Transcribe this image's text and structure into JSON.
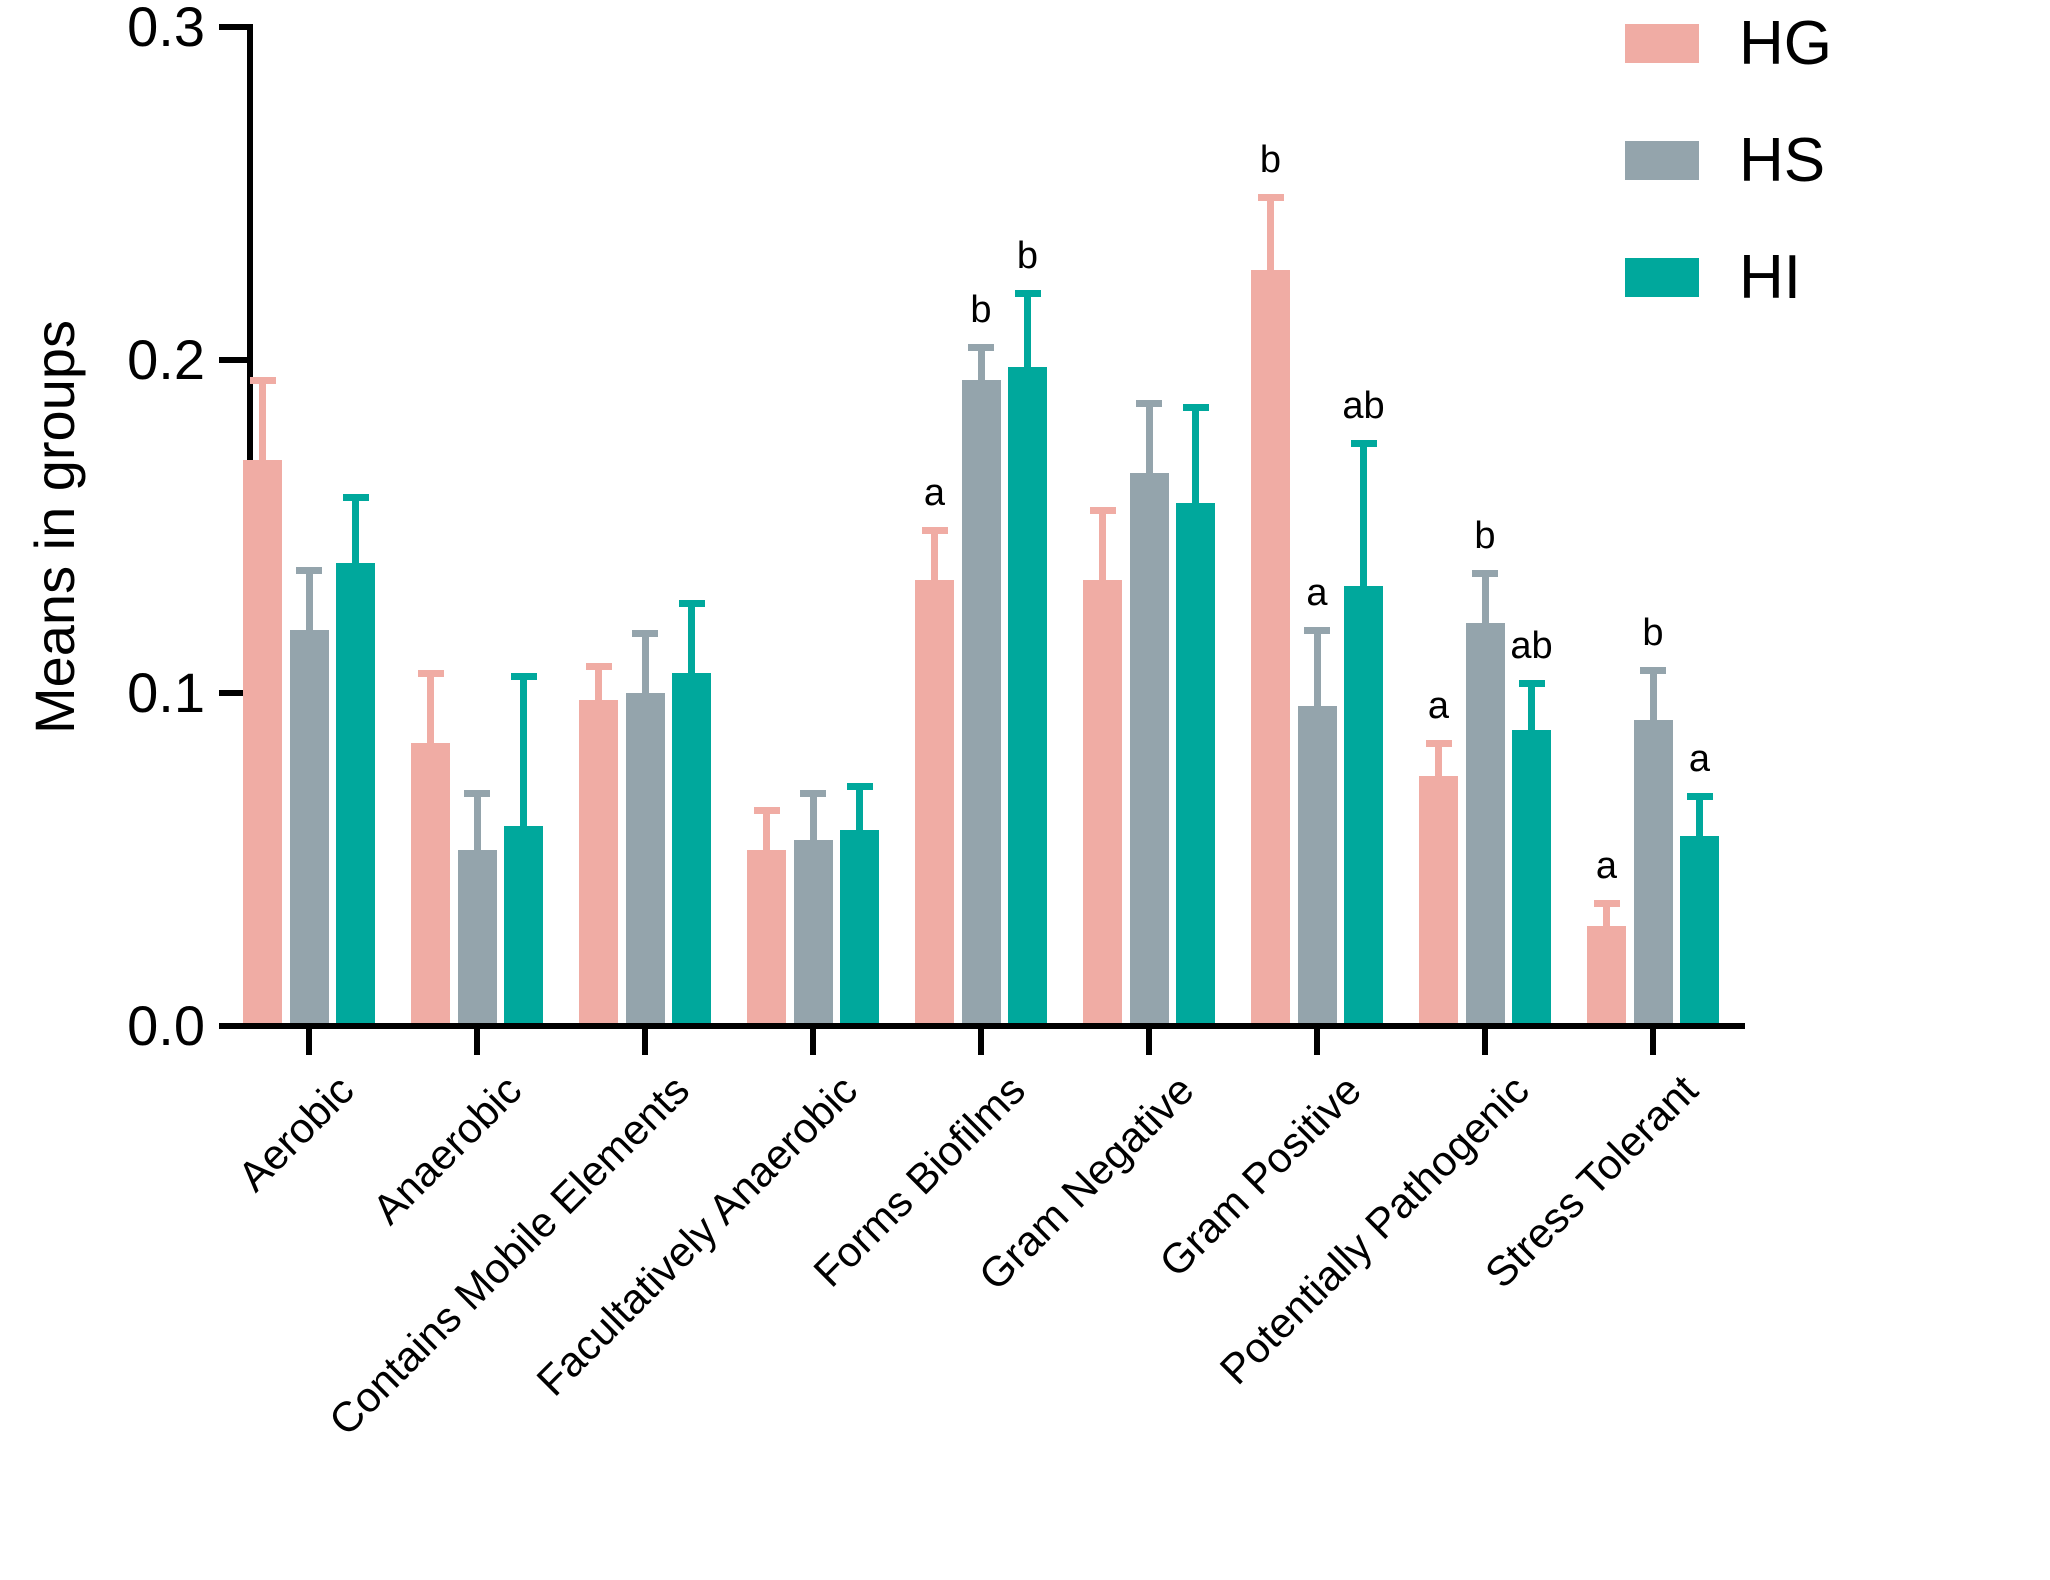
{
  "figure": {
    "ylabel": "Means in groups"
  },
  "chart_data": {
    "type": "bar",
    "title": "",
    "xlabel": "",
    "ylabel": "Means in groups",
    "ylim": [
      0,
      0.3
    ],
    "yticks": [
      0,
      0.1,
      0.2,
      0.3
    ],
    "ytick_labels": [
      "0.0",
      "0.1",
      "0.2",
      "0.3"
    ],
    "grid": false,
    "legend_position": "top-right",
    "error_bars": "upper whiskers with caps",
    "categories": [
      "Aerobic",
      "Anaerobic",
      "Contains Mobile Elements",
      "Facultatively Anaerobic",
      "Forms Biofilms",
      "Gram Negative",
      "Gram Positive",
      "Potentially Pathogenic",
      "Stress Tolerant"
    ],
    "series": [
      {
        "name": "HG",
        "color": "#F0ACA4",
        "values": [
          0.17,
          0.085,
          0.098,
          0.053,
          0.134,
          0.134,
          0.227,
          0.075,
          0.03
        ],
        "errors": [
          0.024,
          0.021,
          0.01,
          0.012,
          0.015,
          0.021,
          0.022,
          0.01,
          0.007
        ],
        "sig_labels": [
          "",
          "",
          "",
          "",
          "a",
          "",
          "b",
          "a",
          "a"
        ]
      },
      {
        "name": "HS",
        "color": "#94A4AC",
        "values": [
          0.119,
          0.053,
          0.1,
          0.056,
          0.194,
          0.166,
          0.096,
          0.121,
          0.092
        ],
        "errors": [
          0.018,
          0.017,
          0.018,
          0.014,
          0.01,
          0.021,
          0.023,
          0.015,
          0.015
        ],
        "sig_labels": [
          "",
          "",
          "",
          "",
          "b",
          "",
          "a",
          "b",
          "b"
        ]
      },
      {
        "name": "HI",
        "color": "#00A89C",
        "values": [
          0.139,
          0.06,
          0.106,
          0.059,
          0.198,
          0.157,
          0.132,
          0.089,
          0.057
        ],
        "errors": [
          0.02,
          0.045,
          0.021,
          0.013,
          0.022,
          0.029,
          0.043,
          0.014,
          0.012
        ],
        "sig_labels": [
          "",
          "",
          "",
          "",
          "b",
          "",
          "ab",
          "ab",
          "a"
        ]
      }
    ]
  }
}
